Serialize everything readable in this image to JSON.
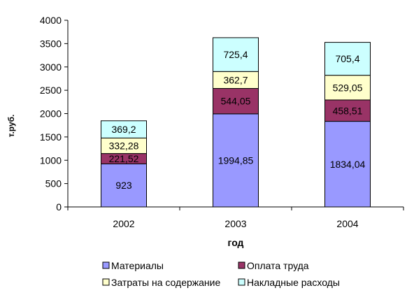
{
  "chart_data": {
    "type": "bar",
    "stacked": true,
    "categories": [
      "2002",
      "2003",
      "2004"
    ],
    "series": [
      {
        "name": "Материалы",
        "color": "#9999FF",
        "values": [
          923,
          1994.85,
          1834.04
        ],
        "labels": [
          "923",
          "1994,85",
          "1834,04"
        ]
      },
      {
        "name": "Оплата труда",
        "color": "#993366",
        "values": [
          221.52,
          544.05,
          458.51
        ],
        "labels": [
          "221,52",
          "544,05",
          "458,51"
        ]
      },
      {
        "name": "Затраты на содержание",
        "color": "#FFFFCC",
        "values": [
          332.28,
          362.7,
          529.05
        ],
        "labels": [
          "332,28",
          "362,7",
          "529,05"
        ]
      },
      {
        "name": "Накладные расходы",
        "color": "#CCFFFF",
        "values": [
          369.2,
          725.4,
          705.4
        ],
        "labels": [
          "369,2",
          "725,4",
          "705,4"
        ]
      }
    ],
    "xlabel": "год",
    "ylabel": "т.руб.",
    "ylim": [
      0,
      4000
    ],
    "yticks": [
      0,
      500,
      1000,
      1500,
      2000,
      2500,
      3000,
      3500,
      4000
    ],
    "grid": false,
    "legend_position": "bottom"
  }
}
